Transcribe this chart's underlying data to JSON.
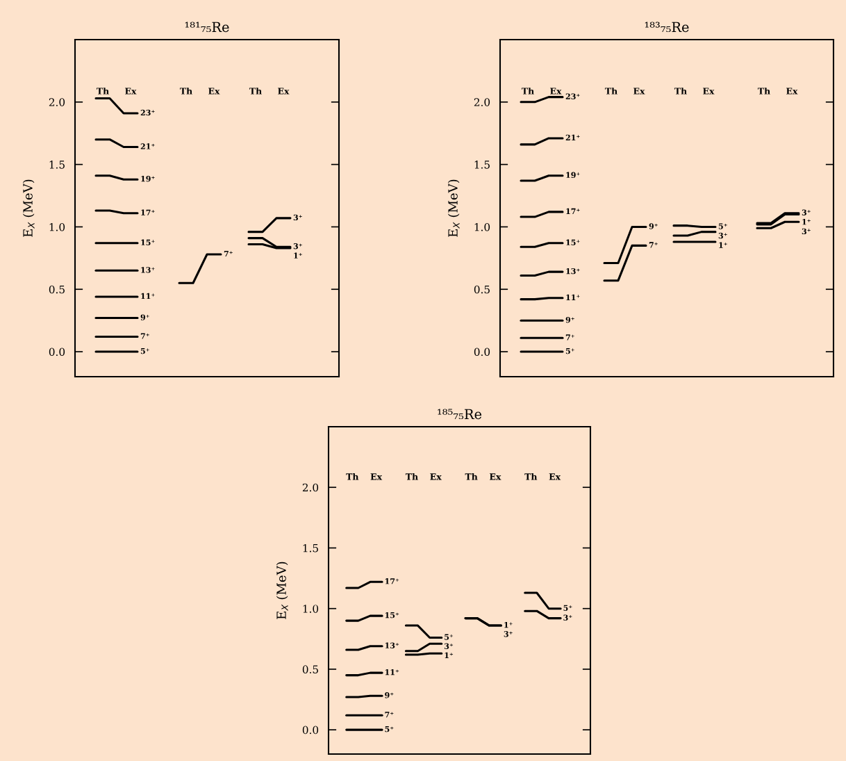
{
  "chart_data": [
    {
      "type": "line",
      "title": "¹⁸¹₇₅Re",
      "ylabel": "E$_{X}$ (MeV)",
      "tick_labels": "y",
      "categories": [
        null,
        null,
        null,
        null,
        null,
        null,
        null,
        null,
        null,
        null,
        null,
        null,
        null,
        null,
        null,
        null,
        null,
        null,
        null
      ],
      "ylim": [
        -0.2,
        2.5
      ],
      "yticks": [
        {
          "value": 0,
          "label": "0.0"
        },
        {
          "value": 0.5,
          "label": "0.5"
        },
        {
          "value": 1,
          "label": "1.0"
        },
        {
          "value": 1.5,
          "label": "1.5"
        },
        {
          "value": 2,
          "label": "2.0"
        }
      ],
      "annotations": [
        "Th",
        "Ex",
        "Th",
        "Ex",
        "Th",
        "Ex"
      ],
      "series": [
        {
          "name": "23⁺",
          "color": "#000000",
          "values": [
            null,
            2.03,
            2.03,
            1.91,
            1.91,
            null,
            null,
            null,
            null,
            null,
            null,
            null,
            null,
            null,
            null,
            null,
            null,
            null,
            null
          ]
        },
        {
          "name": "21⁺",
          "color": "#000000",
          "values": [
            null,
            1.7,
            1.7,
            1.64,
            1.64,
            null,
            null,
            null,
            null,
            null,
            null,
            null,
            null,
            null,
            null,
            null,
            null,
            null,
            null
          ]
        },
        {
          "name": "19⁺",
          "color": "#000000",
          "values": [
            null,
            1.41,
            1.41,
            1.38,
            1.38,
            null,
            null,
            null,
            null,
            null,
            null,
            null,
            null,
            null,
            null,
            null,
            null,
            null,
            null
          ]
        },
        {
          "name": "17⁺",
          "color": "#000000",
          "values": [
            null,
            1.13,
            1.13,
            1.11,
            1.11,
            null,
            null,
            null,
            null,
            null,
            null,
            null,
            null,
            null,
            null,
            null,
            null,
            null,
            null
          ]
        },
        {
          "name": "15⁺",
          "color": "#000000",
          "values": [
            null,
            0.87,
            0.87,
            0.87,
            0.87,
            null,
            null,
            null,
            null,
            null,
            null,
            null,
            null,
            null,
            null,
            null,
            null,
            null,
            null
          ]
        },
        {
          "name": "13⁺",
          "color": "#000000",
          "values": [
            null,
            0.65,
            0.65,
            0.65,
            0.65,
            null,
            null,
            null,
            null,
            null,
            null,
            null,
            null,
            null,
            null,
            null,
            null,
            null,
            null
          ]
        },
        {
          "name": "11⁺",
          "color": "#000000",
          "values": [
            null,
            0.44,
            0.44,
            0.44,
            0.44,
            null,
            null,
            null,
            null,
            null,
            null,
            null,
            null,
            null,
            null,
            null,
            null,
            null,
            null
          ]
        },
        {
          "name": "9⁺",
          "color": "#000000",
          "values": [
            null,
            0.27,
            0.27,
            0.27,
            0.27,
            null,
            null,
            null,
            null,
            null,
            null,
            null,
            null,
            null,
            null,
            null,
            null,
            null,
            null
          ]
        },
        {
          "name": "7⁺",
          "color": "#000000",
          "values": [
            null,
            0.12,
            0.12,
            0.12,
            0.12,
            null,
            null,
            null,
            null,
            null,
            null,
            null,
            null,
            null,
            null,
            null,
            null,
            null,
            null
          ]
        },
        {
          "name": "5⁺",
          "color": "#000000",
          "values": [
            null,
            0,
            0,
            0,
            0,
            null,
            null,
            null,
            null,
            null,
            null,
            null,
            null,
            null,
            null,
            null,
            null,
            null,
            null
          ]
        },
        {
          "name": "7⁺",
          "color": "#000000",
          "values": [
            null,
            null,
            null,
            null,
            null,
            null,
            null,
            0.55,
            0.55,
            0.78,
            0.78,
            null,
            null,
            null,
            null,
            null,
            null,
            null,
            null
          ]
        },
        {
          "name": "3⁺",
          "color": "#000000",
          "values": [
            null,
            null,
            null,
            null,
            null,
            null,
            null,
            null,
            null,
            null,
            null,
            null,
            0.96,
            0.96,
            1.07,
            1.07,
            null,
            null,
            null
          ]
        },
        {
          "name": "3⁺",
          "color": "#000000",
          "values": [
            null,
            null,
            null,
            null,
            null,
            null,
            null,
            null,
            null,
            null,
            null,
            null,
            0.91,
            0.91,
            0.84,
            0.84,
            null,
            null,
            null
          ]
        },
        {
          "name": "1⁺",
          "color": "#000000",
          "values": [
            null,
            null,
            null,
            null,
            null,
            null,
            null,
            null,
            null,
            null,
            null,
            null,
            0.86,
            0.86,
            0.83,
            0.83,
            null,
            null,
            null
          ]
        }
      ]
    },
    {
      "type": "line",
      "title": "¹⁸³₇₅Re",
      "ylabel": "E$_{X}$ (MeV)",
      "tick_labels": "y",
      "categories": [
        null,
        null,
        null,
        null,
        null,
        null,
        null,
        null,
        null,
        null,
        null,
        null,
        null,
        null,
        null,
        null,
        null,
        null,
        null,
        null,
        null,
        null,
        null,
        null
      ],
      "ylim": [
        -0.2,
        2.5
      ],
      "yticks": [
        {
          "value": 0,
          "label": "0.0"
        },
        {
          "value": 0.5,
          "label": "0.5"
        },
        {
          "value": 1,
          "label": "1.0"
        },
        {
          "value": 1.5,
          "label": "1.5"
        },
        {
          "value": 2,
          "label": "2.0"
        }
      ],
      "annotations": [
        "Th",
        "Ex",
        "Th",
        "Ex",
        "Th",
        "Ex",
        "Th",
        "Ex"
      ],
      "series": [
        {
          "name": "23⁺",
          "color": "#000000",
          "values": [
            null,
            2.0,
            2.0,
            2.04,
            2.04,
            null,
            null,
            null,
            null,
            null,
            null,
            null,
            null,
            null,
            null,
            null,
            null,
            null,
            null,
            null,
            null,
            null,
            null,
            null
          ]
        },
        {
          "name": "21⁺",
          "color": "#000000",
          "values": [
            null,
            1.66,
            1.66,
            1.71,
            1.71,
            null,
            null,
            null,
            null,
            null,
            null,
            null,
            null,
            null,
            null,
            null,
            null,
            null,
            null,
            null,
            null,
            null,
            null,
            null
          ]
        },
        {
          "name": "19⁺",
          "color": "#000000",
          "values": [
            null,
            1.37,
            1.37,
            1.41,
            1.41,
            null,
            null,
            null,
            null,
            null,
            null,
            null,
            null,
            null,
            null,
            null,
            null,
            null,
            null,
            null,
            null,
            null,
            null,
            null
          ]
        },
        {
          "name": "17⁺",
          "color": "#000000",
          "values": [
            null,
            1.08,
            1.08,
            1.12,
            1.12,
            null,
            null,
            null,
            null,
            null,
            null,
            null,
            null,
            null,
            null,
            null,
            null,
            null,
            null,
            null,
            null,
            null,
            null,
            null
          ]
        },
        {
          "name": "15⁺",
          "color": "#000000",
          "values": [
            null,
            0.84,
            0.84,
            0.87,
            0.87,
            null,
            null,
            null,
            null,
            null,
            null,
            null,
            null,
            null,
            null,
            null,
            null,
            null,
            null,
            null,
            null,
            null,
            null,
            null
          ]
        },
        {
          "name": "13⁺",
          "color": "#000000",
          "values": [
            null,
            0.61,
            0.61,
            0.64,
            0.64,
            null,
            null,
            null,
            null,
            null,
            null,
            null,
            null,
            null,
            null,
            null,
            null,
            null,
            null,
            null,
            null,
            null,
            null,
            null
          ]
        },
        {
          "name": "11⁺",
          "color": "#000000",
          "values": [
            null,
            0.42,
            0.42,
            0.43,
            0.43,
            null,
            null,
            null,
            null,
            null,
            null,
            null,
            null,
            null,
            null,
            null,
            null,
            null,
            null,
            null,
            null,
            null,
            null,
            null
          ]
        },
        {
          "name": "9⁺",
          "color": "#000000",
          "values": [
            null,
            0.25,
            0.25,
            0.25,
            0.25,
            null,
            null,
            null,
            null,
            null,
            null,
            null,
            null,
            null,
            null,
            null,
            null,
            null,
            null,
            null,
            null,
            null,
            null,
            null
          ]
        },
        {
          "name": "7⁺",
          "color": "#000000",
          "values": [
            null,
            0.11,
            0.11,
            0.11,
            0.11,
            null,
            null,
            null,
            null,
            null,
            null,
            null,
            null,
            null,
            null,
            null,
            null,
            null,
            null,
            null,
            null,
            null,
            null,
            null
          ]
        },
        {
          "name": "5⁺",
          "color": "#000000",
          "values": [
            null,
            0,
            0,
            0,
            0,
            null,
            null,
            null,
            null,
            null,
            null,
            null,
            null,
            null,
            null,
            null,
            null,
            null,
            null,
            null,
            null,
            null,
            null,
            null
          ]
        },
        {
          "name": "9⁺",
          "color": "#000000",
          "values": [
            null,
            null,
            null,
            null,
            null,
            null,
            null,
            0.71,
            0.71,
            1.0,
            1.0,
            null,
            null,
            null,
            null,
            null,
            null,
            null,
            null,
            null,
            null,
            null,
            null,
            null
          ]
        },
        {
          "name": "7⁺",
          "color": "#000000",
          "values": [
            null,
            null,
            null,
            null,
            null,
            null,
            null,
            0.57,
            0.57,
            0.85,
            0.85,
            null,
            null,
            null,
            null,
            null,
            null,
            null,
            null,
            null,
            null,
            null,
            null,
            null
          ]
        },
        {
          "name": "5⁺",
          "color": "#000000",
          "values": [
            null,
            null,
            null,
            null,
            null,
            null,
            null,
            null,
            null,
            null,
            null,
            null,
            1.01,
            1.01,
            1.0,
            1.0,
            null,
            null,
            null,
            null,
            null,
            null,
            null,
            null
          ]
        },
        {
          "name": "3⁺",
          "color": "#000000",
          "values": [
            null,
            null,
            null,
            null,
            null,
            null,
            null,
            null,
            null,
            null,
            null,
            null,
            0.93,
            0.93,
            0.96,
            0.96,
            null,
            null,
            null,
            null,
            null,
            null,
            null,
            null
          ]
        },
        {
          "name": "1⁺",
          "color": "#000000",
          "values": [
            null,
            null,
            null,
            null,
            null,
            null,
            null,
            null,
            null,
            null,
            null,
            null,
            0.88,
            0.88,
            0.88,
            0.88,
            null,
            null,
            null,
            null,
            null,
            null,
            null,
            null
          ]
        },
        {
          "name": "3⁺",
          "color": "#000000",
          "values": [
            null,
            null,
            null,
            null,
            null,
            null,
            null,
            null,
            null,
            null,
            null,
            null,
            null,
            null,
            null,
            null,
            null,
            null,
            1.03,
            1.03,
            1.11,
            1.11,
            null,
            null
          ]
        },
        {
          "name": "1⁺",
          "color": "#000000",
          "values": [
            null,
            null,
            null,
            null,
            null,
            null,
            null,
            null,
            null,
            null,
            null,
            null,
            null,
            null,
            null,
            null,
            null,
            null,
            1.02,
            1.02,
            1.1,
            1.1,
            null,
            null
          ]
        },
        {
          "name": "3⁺",
          "color": "#000000",
          "values": [
            null,
            null,
            null,
            null,
            null,
            null,
            null,
            null,
            null,
            null,
            null,
            null,
            null,
            null,
            null,
            null,
            null,
            null,
            0.99,
            0.99,
            1.04,
            1.04,
            null,
            null
          ]
        }
      ]
    },
    {
      "type": "line",
      "title": "¹⁸⁵₇₅Re",
      "ylabel": "E$_{X}$ (MeV)",
      "tick_labels": "y",
      "categories": [
        null,
        null,
        null,
        null,
        null,
        null,
        null,
        null,
        null,
        null,
        null,
        null,
        null,
        null,
        null,
        null,
        null,
        null,
        null,
        null,
        null,
        null
      ],
      "ylim": [
        -0.2,
        2.5
      ],
      "yticks": [
        {
          "value": 0,
          "label": "0.0"
        },
        {
          "value": 0.5,
          "label": "0.5"
        },
        {
          "value": 1,
          "label": "1.0"
        },
        {
          "value": 1.5,
          "label": "1.5"
        },
        {
          "value": 2,
          "label": "2.0"
        }
      ],
      "annotations": [
        "Th",
        "Ex",
        "Th",
        "Ex",
        "Th",
        "Ex",
        "Th",
        "Ex"
      ],
      "series": [
        {
          "name": "17⁺",
          "color": "#000000",
          "values": [
            null,
            1.17,
            1.17,
            1.22,
            1.22,
            null,
            null,
            null,
            null,
            null,
            null,
            null,
            null,
            null,
            null,
            null,
            null,
            null,
            null,
            null,
            null,
            null
          ]
        },
        {
          "name": "15⁺",
          "color": "#000000",
          "values": [
            null,
            0.9,
            0.9,
            0.94,
            0.94,
            null,
            null,
            null,
            null,
            null,
            null,
            null,
            null,
            null,
            null,
            null,
            null,
            null,
            null,
            null,
            null,
            null
          ]
        },
        {
          "name": "13⁺",
          "color": "#000000",
          "values": [
            null,
            0.66,
            0.66,
            0.69,
            0.69,
            null,
            null,
            null,
            null,
            null,
            null,
            null,
            null,
            null,
            null,
            null,
            null,
            null,
            null,
            null,
            null,
            null
          ]
        },
        {
          "name": "11⁺",
          "color": "#000000",
          "values": [
            null,
            0.45,
            0.45,
            0.47,
            0.47,
            null,
            null,
            null,
            null,
            null,
            null,
            null,
            null,
            null,
            null,
            null,
            null,
            null,
            null,
            null,
            null,
            null
          ]
        },
        {
          "name": "9⁺",
          "color": "#000000",
          "values": [
            null,
            0.27,
            0.27,
            0.28,
            0.28,
            null,
            null,
            null,
            null,
            null,
            null,
            null,
            null,
            null,
            null,
            null,
            null,
            null,
            null,
            null,
            null,
            null
          ]
        },
        {
          "name": "7⁺",
          "color": "#000000",
          "values": [
            null,
            0.12,
            0.12,
            0.12,
            0.12,
            null,
            null,
            null,
            null,
            null,
            null,
            null,
            null,
            null,
            null,
            null,
            null,
            null,
            null,
            null,
            null,
            null
          ]
        },
        {
          "name": "5⁺",
          "color": "#000000",
          "values": [
            null,
            0,
            0,
            0,
            0,
            null,
            null,
            null,
            null,
            null,
            null,
            null,
            null,
            null,
            null,
            null,
            null,
            null,
            null,
            null,
            null,
            null
          ]
        },
        {
          "name": "5⁺",
          "color": "#000000",
          "values": [
            null,
            null,
            null,
            null,
            null,
            null,
            0.86,
            0.86,
            0.76,
            0.76,
            null,
            null,
            null,
            null,
            null,
            null,
            null,
            null,
            null,
            null,
            null,
            null
          ]
        },
        {
          "name": "3⁺",
          "color": "#000000",
          "values": [
            null,
            null,
            null,
            null,
            null,
            null,
            0.65,
            0.65,
            0.71,
            0.71,
            null,
            null,
            null,
            null,
            null,
            null,
            null,
            null,
            null,
            null,
            null,
            null
          ]
        },
        {
          "name": "1⁺",
          "color": "#000000",
          "values": [
            null,
            null,
            null,
            null,
            null,
            null,
            0.62,
            0.62,
            0.63,
            0.63,
            null,
            null,
            null,
            null,
            null,
            null,
            null,
            null,
            null,
            null,
            null,
            null
          ]
        },
        {
          "name": "1⁺",
          "color": "#000000",
          "values": [
            null,
            null,
            null,
            null,
            null,
            null,
            null,
            null,
            null,
            null,
            null,
            0.92,
            0.92,
            0.86,
            0.86,
            null,
            null,
            null,
            null,
            null,
            null,
            null
          ]
        },
        {
          "name": "3⁺",
          "color": "#000000",
          "values": [
            null,
            null,
            null,
            null,
            null,
            null,
            null,
            null,
            null,
            null,
            null,
            0.92,
            0.92,
            0.86,
            0.86,
            null,
            null,
            null,
            null,
            null,
            null,
            null
          ]
        },
        {
          "name": "5⁺",
          "color": "#000000",
          "values": [
            null,
            null,
            null,
            null,
            null,
            null,
            null,
            null,
            null,
            null,
            null,
            null,
            null,
            null,
            null,
            null,
            1.13,
            1.13,
            1.0,
            1.0,
            null,
            null
          ]
        },
        {
          "name": "3⁺",
          "color": "#000000",
          "values": [
            null,
            null,
            null,
            null,
            null,
            null,
            null,
            null,
            null,
            null,
            null,
            null,
            null,
            null,
            null,
            null,
            0.98,
            0.98,
            0.92,
            0.92,
            null,
            null
          ]
        }
      ]
    }
  ]
}
